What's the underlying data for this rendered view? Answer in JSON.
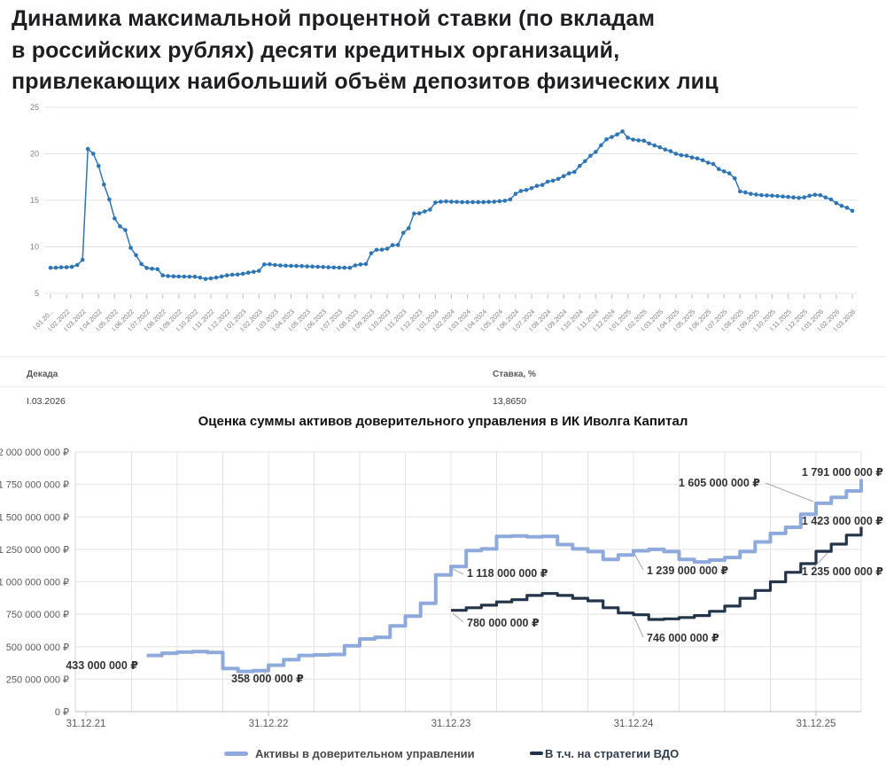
{
  "page_title": "Динамика максимальной процентной ставки (по вкладам\nв российских рублях) десяти кредитных организаций,\nпривлекающих наибольший объём депозитов физических лиц",
  "colors": {
    "rate_line": "#2e75b6",
    "assets_line": "#8ea9db",
    "vdo_line": "#22334a",
    "grid": "#e3e3e3",
    "axis": "#bdbdbd",
    "axis_text": "#7f7f7f",
    "annotation_text": "#333333",
    "leader_line": "#a6a6a6"
  },
  "chart_data": [
    {
      "type": "line",
      "name": "max-deposit-rate-by-decade",
      "ylabel": "",
      "ylim": [
        5,
        25
      ],
      "yticks": [
        5,
        10,
        15,
        20,
        25
      ],
      "grid": "horizontal",
      "points_per_month": 3,
      "x_labels": [
        "I.01.20...",
        "I.02.2022",
        "I.03.2022",
        "I.04.2022",
        "I.05.2022",
        "I.06.2022",
        "I.07.2022",
        "I.08.2022",
        "I.09.2022",
        "I.10.2022",
        "I.11.2022",
        "I.12.2022",
        "I.01.2023",
        "I.02.2023",
        "I.03.2023",
        "I.04.2023",
        "I.05.2023",
        "I.06.2023",
        "I.07.2023",
        "I.08.2023",
        "I.09.2023",
        "I.10.2023",
        "I.11.2023",
        "I.12.2023",
        "I.01.2024",
        "I.02.2024",
        "I.03.2024",
        "I.04.2024",
        "I.05.2024",
        "I.06.2024",
        "I.07.2024",
        "I.08.2024",
        "I.09.2024",
        "I.10.2024",
        "I.11.2024",
        "I.12.2024",
        "I.01.2025",
        "I.02.2025",
        "I.03.2025",
        "I.04.2025",
        "I.05.2025",
        "I.06.2025",
        "I.07.2025",
        "I.08.2025",
        "I.09.2025",
        "I.10.2025",
        "I.11.2025",
        "I.12.2025",
        "I.01.2026",
        "I.02.2026",
        "I.03.2026"
      ],
      "values": [
        7.74,
        7.75,
        7.8,
        7.8,
        7.85,
        8.05,
        8.6,
        20.51,
        20.0,
        18.7,
        16.7,
        15.1,
        13.05,
        12.2,
        11.8,
        9.9,
        9.1,
        8.15,
        7.72,
        7.65,
        7.6,
        6.93,
        6.86,
        6.83,
        6.81,
        6.8,
        6.78,
        6.79,
        6.69,
        6.54,
        6.61,
        6.7,
        6.81,
        6.93,
        7.0,
        7.02,
        7.1,
        7.22,
        7.3,
        7.42,
        8.1,
        8.12,
        8.05,
        8.0,
        7.97,
        7.95,
        7.94,
        7.92,
        7.9,
        7.88,
        7.86,
        7.83,
        7.8,
        7.78,
        7.76,
        7.75,
        7.74,
        8.0,
        8.1,
        8.15,
        9.3,
        9.68,
        9.7,
        9.8,
        10.18,
        10.2,
        11.5,
        12.0,
        13.57,
        13.6,
        13.8,
        14.0,
        14.75,
        14.85,
        14.88,
        14.85,
        14.83,
        14.8,
        14.8,
        14.8,
        14.8,
        14.8,
        14.83,
        14.85,
        14.9,
        14.95,
        15.1,
        15.7,
        16.0,
        16.1,
        16.3,
        16.55,
        16.65,
        17.0,
        17.1,
        17.3,
        17.6,
        17.9,
        18.05,
        18.7,
        19.2,
        19.78,
        20.2,
        20.91,
        21.55,
        21.8,
        22.08,
        22.4,
        21.72,
        21.52,
        21.44,
        21.4,
        21.1,
        20.9,
        20.7,
        20.45,
        20.28,
        20.0,
        19.85,
        19.79,
        19.6,
        19.5,
        19.3,
        19.05,
        18.9,
        18.35,
        18.1,
        17.9,
        17.35,
        15.95,
        15.85,
        15.7,
        15.62,
        15.55,
        15.52,
        15.5,
        15.46,
        15.41,
        15.36,
        15.31,
        15.26,
        15.31,
        15.49,
        15.59,
        15.55,
        15.3,
        15.1,
        14.7,
        14.4,
        14.2,
        13.865
      ]
    },
    {
      "type": "step-line",
      "title": "Оценка суммы активов доверительного управления в ИК Иволга Капитал",
      "ylim": [
        0,
        2000000000
      ],
      "ytick_labels": [
        "0 ₽",
        "250 000 000 ₽",
        "500 000 000 ₽",
        "750 000 000 ₽",
        "1 000 000 000 ₽",
        "1 250 000 000 ₽",
        "1 500 000 000 ₽",
        "1 750 000 000 ₽",
        "2 000 000 000 ₽"
      ],
      "x_labels": [
        "31.12.21",
        "31.12.22",
        "31.12.23",
        "31.12.24",
        "31.12.25"
      ],
      "x_label_months": [
        0,
        12,
        24,
        36,
        48
      ],
      "grid": "both",
      "series": [
        {
          "name": "Активы в доверительном управлении",
          "color": "#8ea9db",
          "stroke_width": 4,
          "start_month": 4,
          "values_mln": [
            433,
            450,
            458,
            462,
            455,
            332,
            310,
            316,
            358,
            400,
            433,
            437,
            440,
            507,
            560,
            573,
            660,
            735,
            835,
            1053,
            1118,
            1240,
            1253,
            1350,
            1353,
            1347,
            1350,
            1287,
            1253,
            1233,
            1173,
            1207,
            1239,
            1250,
            1233,
            1173,
            1153,
            1167,
            1187,
            1233,
            1307,
            1373,
            1420,
            1520,
            1605,
            1650,
            1700,
            1791
          ]
        },
        {
          "name": "В т.ч. на стратегии ВДО",
          "color": "#22334a",
          "stroke_width": 3.2,
          "start_month": 24,
          "values_mln": [
            780,
            800,
            820,
            845,
            862,
            895,
            910,
            895,
            873,
            853,
            800,
            760,
            746,
            710,
            715,
            725,
            740,
            773,
            813,
            873,
            933,
            1000,
            1073,
            1140,
            1235,
            1290,
            1360,
            1423
          ]
        }
      ],
      "annotations": [
        {
          "text": "433 000 000 ₽",
          "x": 156,
          "y": 263,
          "anchor": "end"
        },
        {
          "text": "358 000 000 ₽",
          "x": 302,
          "y": 278,
          "anchor": "middle",
          "leader": [
            303,
            262,
            297,
            271
          ]
        },
        {
          "text": "1 118 000 000 ₽",
          "x": 527,
          "y": 159,
          "anchor": "start",
          "leader": [
            511,
            150,
            523,
            156
          ]
        },
        {
          "text": "780 000 000 ₽",
          "x": 527,
          "y": 215,
          "anchor": "start",
          "leader": [
            511,
            200,
            523,
            210
          ]
        },
        {
          "text": "1 239 000 000 ₽",
          "x": 730,
          "y": 156,
          "anchor": "start",
          "leader": [
            716,
            133,
            726,
            151
          ]
        },
        {
          "text": "746 000 000 ₽",
          "x": 730,
          "y": 232,
          "anchor": "start",
          "leader": [
            716,
            205,
            726,
            227
          ]
        },
        {
          "text": "1 605 000 000 ₽",
          "x": 858,
          "y": 57,
          "anchor": "end",
          "leader": [
            864,
            53,
            918,
            74
          ]
        },
        {
          "text": "1 791 000 000 ₽",
          "x": 997,
          "y": 45,
          "anchor": "end"
        },
        {
          "text": "1 423 000 000 ₽",
          "x": 997,
          "y": 100,
          "anchor": "end"
        },
        {
          "text": "1 235 000 000 ₽",
          "x": 997,
          "y": 157,
          "anchor": "end",
          "leader": [
            934,
            132,
            916,
            151
          ]
        }
      ],
      "legend_position": "bottom"
    }
  ],
  "table": {
    "headers": [
      "Декада",
      "Ставка, %"
    ],
    "rows": [
      [
        "I.03.2026",
        "13,8650"
      ]
    ]
  }
}
